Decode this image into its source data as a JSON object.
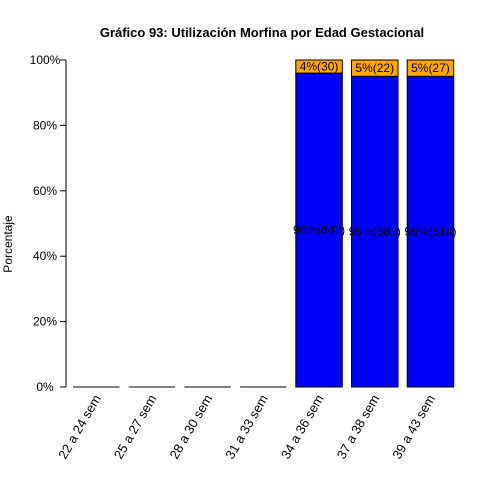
{
  "chart_data": {
    "type": "bar",
    "stacked": true,
    "title": "Gráfico 93: Utilización Morfina por  Edad Gestacional",
    "xlabel": "",
    "ylabel": "Porcentaje",
    "ylim": [
      0,
      100
    ],
    "y_ticks": [
      "0%",
      "20%",
      "40%",
      "60%",
      "80%",
      "100%"
    ],
    "categories": [
      "22 a 24 sem",
      "25 a 27 sem",
      "28 a 30 sem",
      "31 a 33 sem",
      "34 a 36 sem",
      "37 a 38 sem",
      "39 a 43 sem"
    ],
    "series": [
      {
        "color": "#0000FF",
        "values": [
          0,
          0,
          0,
          0,
          96,
          95,
          95
        ],
        "labels": [
          "",
          "",
          "",
          "",
          "96%(643)",
          "95%(383)",
          "95%(514)"
        ]
      },
      {
        "color": "#FFA500",
        "values": [
          0,
          0,
          0,
          0,
          4,
          5,
          5
        ],
        "labels": [
          "",
          "",
          "",
          "",
          "4%(30)",
          "5%(22)",
          "5%(27)"
        ]
      }
    ]
  }
}
